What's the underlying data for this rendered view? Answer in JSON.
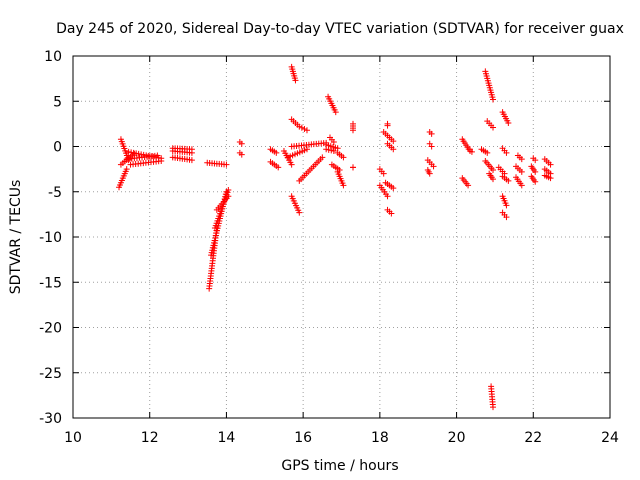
{
  "chart_data": {
    "type": "scatter",
    "title": "Day 245 of 2020, Sidereal Day-to-day VTEC variation (SDTVAR) for receiver guax",
    "xlabel": "GPS time / hours",
    "ylabel": "SDTVAR / TECUs",
    "xlim": [
      10,
      24
    ],
    "ylim": [
      -30,
      10
    ],
    "xticks": [
      10,
      12,
      14,
      16,
      18,
      20,
      22,
      24
    ],
    "yticks": [
      10,
      5,
      0,
      -5,
      -10,
      -15,
      -20,
      -25,
      -30
    ],
    "grid": true,
    "marker": "plus",
    "color": "#ff0000",
    "segments": [
      [
        11.25,
        11.45,
        0.8,
        -1.5
      ],
      [
        11.25,
        11.6,
        -2.0,
        -0.8
      ],
      [
        11.2,
        11.4,
        -4.5,
        -2.5
      ],
      [
        11.4,
        12.2,
        -1.4,
        -1.0
      ],
      [
        11.45,
        12.3,
        -0.6,
        -1.3
      ],
      [
        11.5,
        12.3,
        -2.0,
        -1.6
      ],
      [
        12.6,
        13.1,
        -0.5,
        -0.7
      ],
      [
        12.6,
        13.1,
        -1.2,
        -1.5
      ],
      [
        12.6,
        13.1,
        -0.2,
        -0.3
      ],
      [
        13.55,
        13.75,
        -15.7,
        -9.0
      ],
      [
        13.6,
        14.0,
        -12.0,
        -5.0
      ],
      [
        13.7,
        14.05,
        -9.0,
        -4.8
      ],
      [
        13.75,
        14.05,
        -7.0,
        -5.5
      ],
      [
        13.5,
        14.0,
        -1.8,
        -2.0
      ],
      [
        14.35,
        14.4,
        0.5,
        0.3
      ],
      [
        14.35,
        14.4,
        -0.7,
        -0.9
      ],
      [
        15.15,
        15.3,
        -0.3,
        -0.7
      ],
      [
        15.15,
        15.35,
        -1.7,
        -2.3
      ],
      [
        15.5,
        15.7,
        -0.5,
        -2.0
      ],
      [
        15.7,
        15.8,
        8.8,
        7.3
      ],
      [
        15.7,
        15.85,
        3.0,
        2.4
      ],
      [
        15.9,
        16.1,
        2.2,
        1.8
      ],
      [
        15.7,
        15.9,
        -5.5,
        -7.3
      ],
      [
        15.9,
        16.5,
        -3.8,
        -1.2
      ],
      [
        15.6,
        16.1,
        -1.2,
        -0.3
      ],
      [
        15.7,
        16.6,
        0.0,
        0.4
      ],
      [
        16.6,
        16.9,
        0.2,
        -0.2
      ],
      [
        16.65,
        16.85,
        5.5,
        3.8
      ],
      [
        16.7,
        16.8,
        1.0,
        0.5
      ],
      [
        16.6,
        16.8,
        -0.3,
        -0.5
      ],
      [
        16.75,
        16.95,
        -2.0,
        -2.6
      ],
      [
        16.9,
        17.05,
        -2.8,
        -4.3
      ],
      [
        16.9,
        17.05,
        -0.7,
        -1.2
      ],
      [
        17.3,
        17.3,
        2.5,
        1.8
      ],
      [
        17.3,
        17.3,
        -2.3,
        -2.3
      ],
      [
        18.0,
        18.1,
        -2.5,
        -3.0
      ],
      [
        18.0,
        18.2,
        -4.3,
        -5.5
      ],
      [
        18.15,
        18.35,
        -4.0,
        -4.6
      ],
      [
        18.2,
        18.3,
        -7.0,
        -7.4
      ],
      [
        18.1,
        18.35,
        1.6,
        0.6
      ],
      [
        18.2,
        18.35,
        0.3,
        -0.3
      ],
      [
        18.2,
        18.2,
        2.5,
        2.3
      ],
      [
        19.3,
        19.35,
        1.6,
        1.4
      ],
      [
        19.3,
        19.35,
        0.3,
        0.0
      ],
      [
        19.25,
        19.4,
        -1.5,
        -2.2
      ],
      [
        19.25,
        19.3,
        -2.6,
        -3.0
      ],
      [
        20.15,
        20.35,
        0.8,
        -0.5
      ],
      [
        20.15,
        20.3,
        -3.5,
        -4.3
      ],
      [
        20.35,
        20.4,
        -0.3,
        -0.6
      ],
      [
        20.75,
        20.95,
        8.3,
        5.2
      ],
      [
        20.8,
        20.95,
        2.8,
        2.1
      ],
      [
        20.65,
        20.8,
        -0.3,
        -0.7
      ],
      [
        20.75,
        20.95,
        -1.6,
        -2.6
      ],
      [
        20.85,
        20.95,
        -3.0,
        -3.6
      ],
      [
        20.9,
        20.95,
        -26.5,
        -28.8
      ],
      [
        21.2,
        21.35,
        3.8,
        2.6
      ],
      [
        21.2,
        21.3,
        -0.2,
        -0.7
      ],
      [
        21.1,
        21.25,
        -2.3,
        -3.0
      ],
      [
        21.2,
        21.35,
        -3.3,
        -3.8
      ],
      [
        21.2,
        21.3,
        -5.5,
        -6.5
      ],
      [
        21.2,
        21.3,
        -7.3,
        -7.8
      ],
      [
        21.6,
        21.7,
        -1.0,
        -1.4
      ],
      [
        21.55,
        21.7,
        -2.2,
        -2.8
      ],
      [
        21.55,
        21.7,
        -3.4,
        -4.3
      ],
      [
        22.0,
        22.05,
        -1.3,
        -1.5
      ],
      [
        21.95,
        22.05,
        -2.2,
        -2.8
      ],
      [
        21.95,
        22.05,
        -3.3,
        -3.9
      ],
      [
        22.3,
        22.45,
        -1.4,
        -2.0
      ],
      [
        22.3,
        22.45,
        -2.5,
        -3.0
      ],
      [
        22.3,
        22.45,
        -3.2,
        -3.5
      ]
    ]
  }
}
